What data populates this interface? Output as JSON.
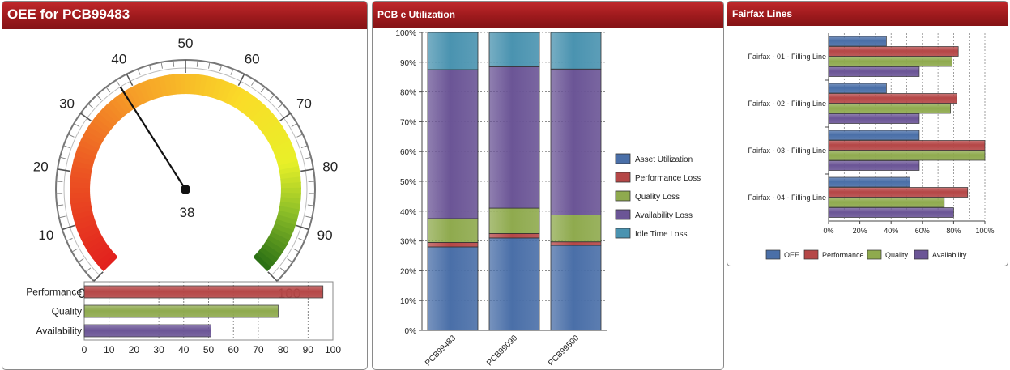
{
  "colors": {
    "oee": "#4a6fa8",
    "performance": "#b54747",
    "quality": "#8faa4e",
    "availability": "#6b5596",
    "idle": "#4a93b0",
    "needle": "#111111"
  },
  "oee_panel": {
    "title": "OEE for PCB99483",
    "gauge": {
      "value": 38,
      "value_label": "38",
      "min": 0,
      "max": 100,
      "major_labels": [
        "0",
        "10",
        "20",
        "30",
        "40",
        "50",
        "60",
        "70",
        "80",
        "90",
        "100"
      ]
    }
  },
  "utilization_panel": {
    "title": "PCB e Utilization"
  },
  "fairfax_panel": {
    "title": "Fairfax Lines"
  },
  "chart_data": [
    {
      "type": "bar",
      "orientation": "horizontal",
      "title": "",
      "categories": [
        "Performance",
        "Quality",
        "Availability"
      ],
      "values": [
        96,
        78,
        51
      ],
      "xlim": [
        0,
        100
      ],
      "xticks": [
        "0",
        "10",
        "20",
        "30",
        "40",
        "50",
        "60",
        "70",
        "80",
        "90",
        "100"
      ],
      "grid": true
    },
    {
      "type": "bar",
      "stacked": true,
      "title": "PCB e Utilization",
      "categories": [
        "PCB99483",
        "PCB99090",
        "PCB99500"
      ],
      "series": [
        {
          "name": "Asset Utilization",
          "values": [
            28,
            31,
            28.5
          ]
        },
        {
          "name": "Performance Loss",
          "values": [
            1.5,
            1.5,
            1.2
          ]
        },
        {
          "name": "Quality Loss",
          "values": [
            8,
            8.5,
            9
          ]
        },
        {
          "name": "Availability Loss",
          "values": [
            50,
            47.5,
            49
          ]
        },
        {
          "name": "Idle Time Loss",
          "values": [
            12.5,
            11.5,
            12.3
          ]
        }
      ],
      "ylim": [
        0,
        100
      ],
      "yticks": [
        "0%",
        "10%",
        "20%",
        "30%",
        "40%",
        "50%",
        "60%",
        "70%",
        "80%",
        "90%",
        "100%"
      ],
      "legend": "right",
      "grid": true
    },
    {
      "type": "bar",
      "orientation": "horizontal",
      "title": "Fairfax Lines",
      "categories": [
        "Fairfax - 01 - Filling Line",
        "Fairfax - 02 - Filling Line",
        "Fairfax - 03 - Filling Line",
        "Fairfax - 04 - Filling Line"
      ],
      "series": [
        {
          "name": "OEE",
          "values": [
            37,
            37,
            58,
            52
          ]
        },
        {
          "name": "Performance",
          "values": [
            83,
            82,
            100,
            89
          ]
        },
        {
          "name": "Quality",
          "values": [
            79,
            78,
            100,
            74
          ]
        },
        {
          "name": "Availability",
          "values": [
            58,
            58,
            58,
            80
          ]
        }
      ],
      "xlim": [
        0,
        100
      ],
      "xticks": [
        "0%",
        "20%",
        "40%",
        "60%",
        "80%",
        "100%"
      ],
      "legend": "bottom",
      "grid": true
    }
  ]
}
